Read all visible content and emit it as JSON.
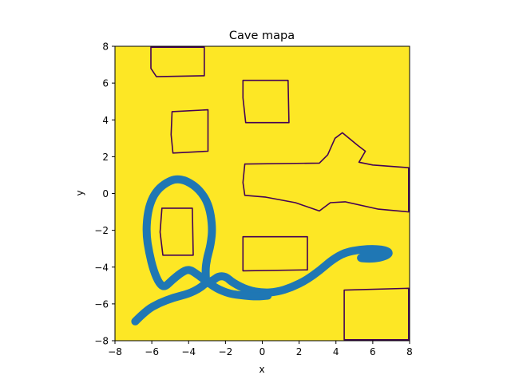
{
  "chart_data": {
    "type": "heatmap+line",
    "title": "Cave mapa",
    "xlabel": "x",
    "ylabel": "y",
    "xlim": [
      -8,
      8
    ],
    "ylim": [
      -8,
      8
    ],
    "xticks": [
      -8,
      -6,
      -4,
      -2,
      0,
      2,
      4,
      6,
      8
    ],
    "yticks": [
      -8,
      -6,
      -4,
      -2,
      0,
      2,
      4,
      6,
      8
    ],
    "grid": false,
    "background_color": "#fde725",
    "obstacle_color": "#fde725",
    "obstacle_outline_color": "#440154",
    "path_color": "#1f77b4",
    "obstacles": [
      {
        "name": "top-left-block",
        "points": [
          [
            -6.05,
            7.95
          ],
          [
            -3.15,
            7.95
          ],
          [
            -3.15,
            6.4
          ],
          [
            -5.75,
            6.35
          ],
          [
            -6.05,
            6.8
          ]
        ]
      },
      {
        "name": "left-upper-block",
        "points": [
          [
            -4.9,
            4.45
          ],
          [
            -2.95,
            4.55
          ],
          [
            -2.95,
            2.3
          ],
          [
            -4.85,
            2.2
          ],
          [
            -4.95,
            3.2
          ]
        ]
      },
      {
        "name": "center-upper-block",
        "points": [
          [
            -1.05,
            6.15
          ],
          [
            1.4,
            6.15
          ],
          [
            1.45,
            3.85
          ],
          [
            -0.9,
            3.85
          ],
          [
            -1.05,
            5.2
          ]
        ]
      },
      {
        "name": "left-middle-block",
        "points": [
          [
            -5.45,
            -0.8
          ],
          [
            -3.8,
            -0.8
          ],
          [
            -3.75,
            -3.35
          ],
          [
            -5.4,
            -3.35
          ],
          [
            -5.55,
            -2.1
          ]
        ]
      },
      {
        "name": "center-lower-block",
        "points": [
          [
            -1.05,
            -2.35
          ],
          [
            2.45,
            -2.35
          ],
          [
            2.45,
            -4.15
          ],
          [
            -1.05,
            -4.2
          ]
        ]
      },
      {
        "name": "right-arrow-shape",
        "points": [
          [
            -0.95,
            1.6
          ],
          [
            3.1,
            1.65
          ],
          [
            3.55,
            2.1
          ],
          [
            3.95,
            3.0
          ],
          [
            4.35,
            3.3
          ],
          [
            5.2,
            2.6
          ],
          [
            5.6,
            2.3
          ],
          [
            5.25,
            1.7
          ],
          [
            6.0,
            1.55
          ],
          [
            7.95,
            1.4
          ],
          [
            7.95,
            -1.0
          ],
          [
            6.3,
            -0.85
          ],
          [
            4.5,
            -0.45
          ],
          [
            3.7,
            -0.5
          ],
          [
            3.1,
            -0.95
          ],
          [
            1.8,
            -0.5
          ],
          [
            0.2,
            -0.2
          ],
          [
            -0.95,
            -0.1
          ],
          [
            -1.05,
            0.6
          ]
        ]
      },
      {
        "name": "bottom-right-block",
        "points": [
          [
            4.45,
            -5.25
          ],
          [
            7.95,
            -5.15
          ],
          [
            7.95,
            -7.95
          ],
          [
            4.45,
            -7.95
          ]
        ]
      }
    ],
    "series": [
      {
        "x": [
          -6.9,
          -6.3,
          -5.6,
          -4.8,
          -4.0,
          -3.4,
          -3.05,
          -2.7,
          -2.4,
          -2.0,
          -1.6,
          -0.8,
          0.0,
          0.8,
          1.6,
          2.4,
          3.1,
          3.8,
          4.5,
          5.3,
          6.1,
          6.8,
          6.9,
          6.4,
          5.8,
          5.2,
          5.9,
          6.5,
          6.8
        ],
        "y": [
          -6.95,
          -6.35,
          -5.95,
          -5.65,
          -5.45,
          -5.15,
          -4.85,
          -4.75,
          -4.5,
          -4.5,
          -4.85,
          -5.25,
          -5.4,
          -5.35,
          -5.1,
          -4.7,
          -4.2,
          -3.6,
          -3.2,
          -3.05,
          -3.0,
          -3.1,
          -3.3,
          -3.5,
          -3.55,
          -3.5,
          -3.4,
          -3.3,
          -3.25
        ]
      },
      {
        "x": [
          -3.05,
          -3.1,
          -3.0,
          -2.8,
          -2.7,
          -2.9,
          -3.4,
          -4.1,
          -4.7,
          -5.2,
          -5.7,
          -6.05,
          -6.25,
          -6.3,
          -6.15,
          -5.9,
          -5.6,
          -5.3,
          -4.9,
          -4.4,
          -4.0,
          -3.6,
          -3.05,
          -2.5,
          -1.8,
          -1.0,
          -0.3,
          0.3
        ],
        "y": [
          -4.85,
          -4.2,
          -3.5,
          -2.8,
          -1.8,
          -0.6,
          0.2,
          0.7,
          0.8,
          0.6,
          0.2,
          -0.4,
          -1.2,
          -2.2,
          -3.2,
          -4.2,
          -4.9,
          -5.1,
          -4.7,
          -4.3,
          -4.1,
          -4.35,
          -4.75,
          -5.15,
          -5.45,
          -5.55,
          -5.6,
          -5.55
        ]
      }
    ]
  }
}
